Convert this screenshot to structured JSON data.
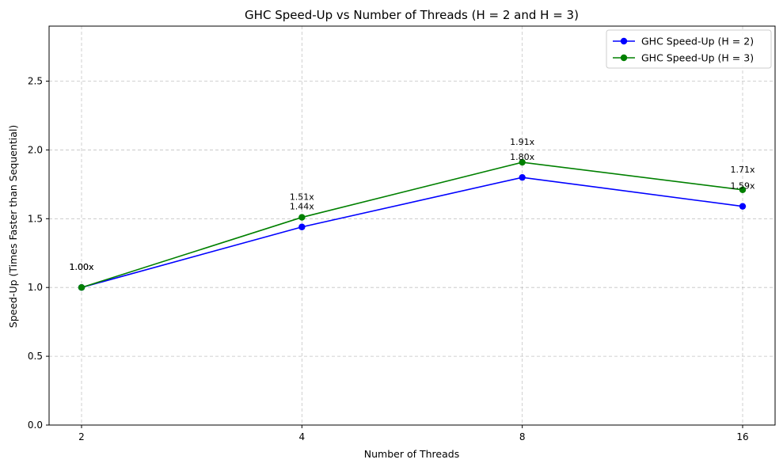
{
  "chart_data": {
    "type": "line",
    "title": "GHC Speed-Up vs Number of Threads (H = 2 and H = 3)",
    "xlabel": "Number of Threads",
    "ylabel": "Speed-Up (Times Faster than Sequential)",
    "x": [
      2,
      4,
      8,
      16
    ],
    "x_tick_labels": [
      "2",
      "4",
      "8",
      "16"
    ],
    "x_scale": "categorical",
    "ylim": [
      0,
      2.9
    ],
    "y_ticks": [
      0.0,
      0.5,
      1.0,
      1.5,
      2.0,
      2.5
    ],
    "y_tick_labels": [
      "0.0",
      "0.5",
      "1.0",
      "1.5",
      "2.0",
      "2.5"
    ],
    "grid": true,
    "legend_position": "top-right",
    "series": [
      {
        "name": "GHC Speed-Up (H = 2)",
        "color": "#0000ff",
        "marker": "circle",
        "values": [
          1.0,
          1.44,
          1.8,
          1.59
        ],
        "data_labels": [
          "1.00x",
          "1.44x",
          "1.80x",
          "1.59x"
        ]
      },
      {
        "name": "GHC Speed-Up (H = 3)",
        "color": "#008000",
        "marker": "circle",
        "values": [
          1.0,
          1.51,
          1.91,
          1.71
        ],
        "data_labels": [
          "1.00x",
          "1.51x",
          "1.91x",
          "1.71x"
        ]
      }
    ]
  }
}
